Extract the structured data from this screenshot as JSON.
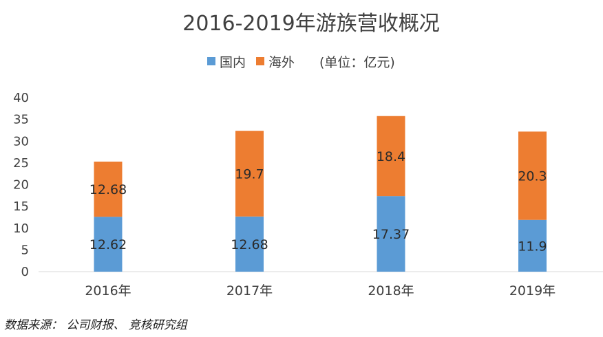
{
  "chart_data": {
    "type": "bar",
    "stacked": true,
    "title": "2016-2019年游族营收概况",
    "unit_note": "(单位：亿元)",
    "categories": [
      "2016年",
      "2017年",
      "2018年",
      "2019年"
    ],
    "series": [
      {
        "name": "国内",
        "color": "#5b9bd5",
        "values": [
          12.62,
          12.68,
          17.37,
          11.9
        ],
        "labels": [
          "12.62",
          "12.68",
          "17.37",
          "11.9"
        ]
      },
      {
        "name": "海外",
        "color": "#ed7d31",
        "values": [
          12.68,
          19.7,
          18.4,
          20.3
        ],
        "labels": [
          "12.68",
          "19.7",
          "18.4",
          "20.3"
        ]
      }
    ],
    "ylim": [
      0,
      40
    ],
    "yticks": [
      "0",
      "5",
      "10",
      "15",
      "20",
      "25",
      "30",
      "35",
      "40"
    ],
    "grid": false,
    "legend_position": "top"
  },
  "source": "数据来源： 公司财报、 竞核研究组"
}
